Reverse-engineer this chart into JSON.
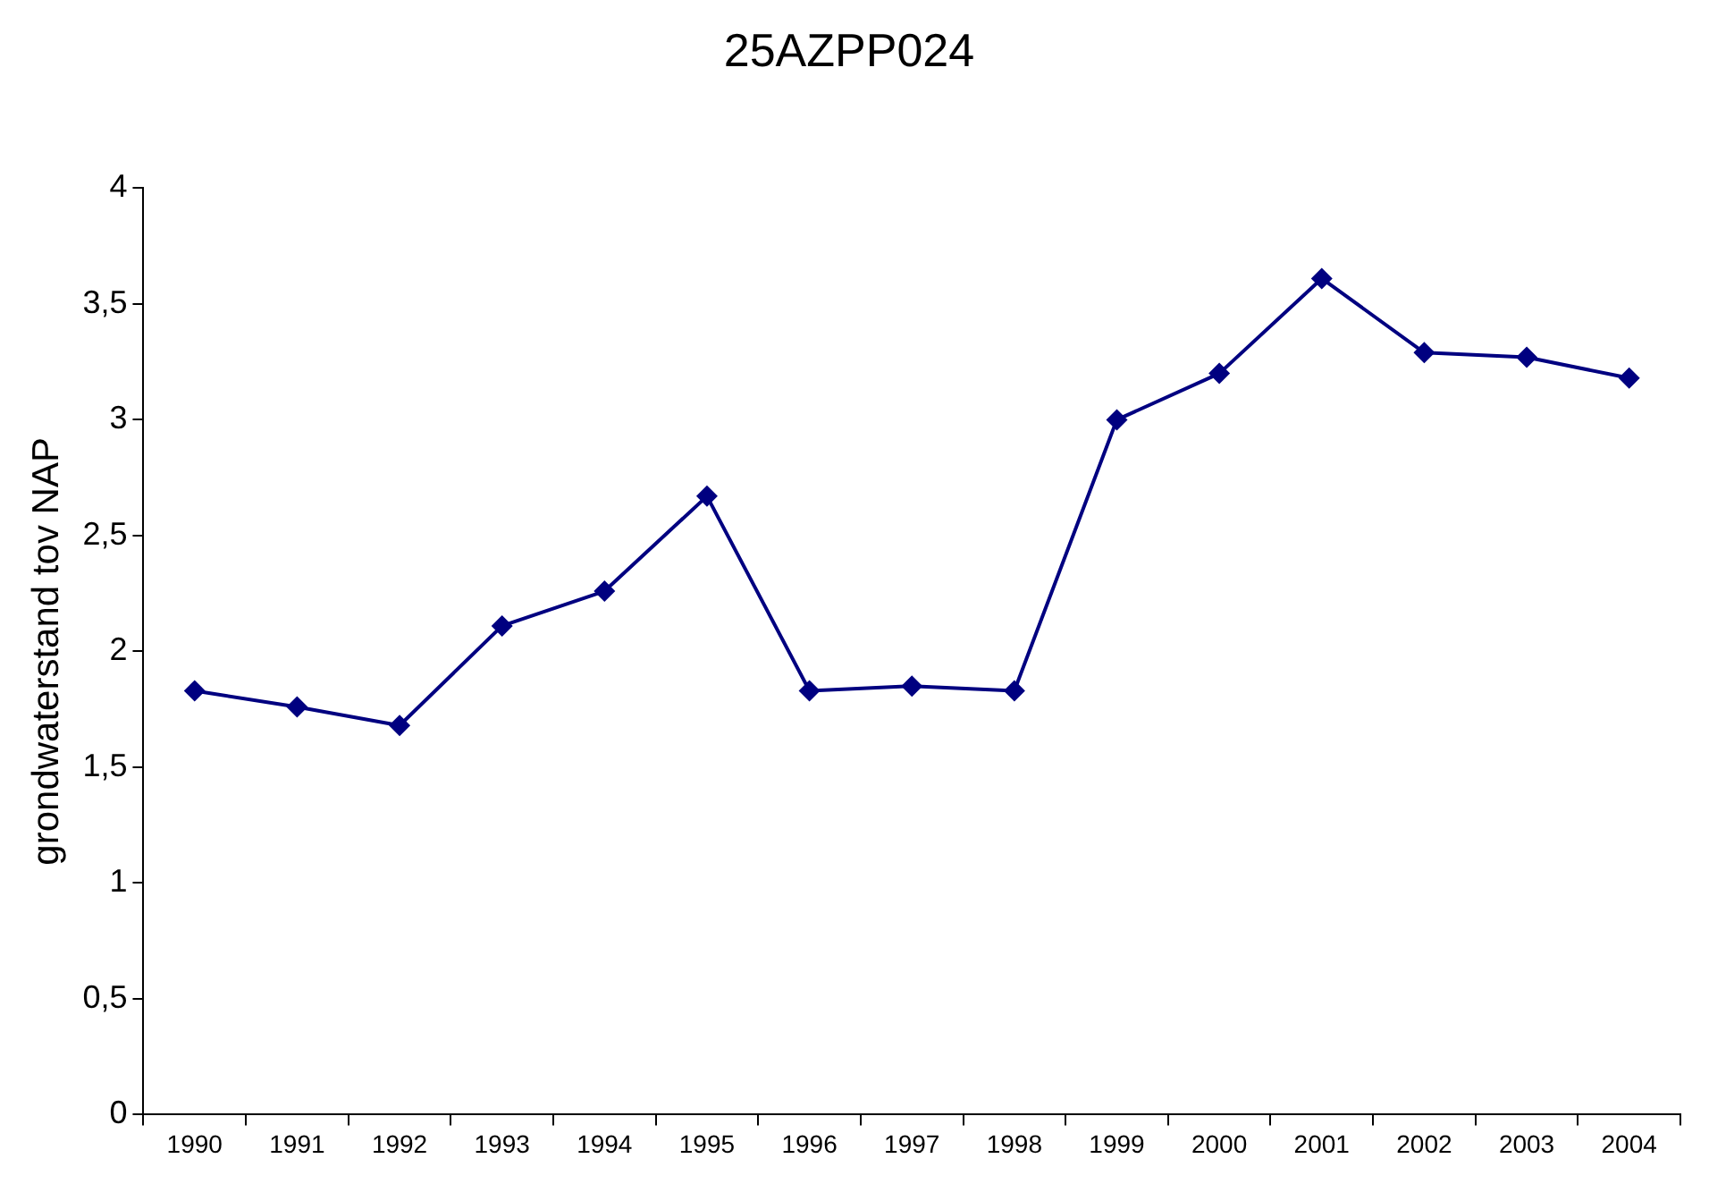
{
  "chart_data": {
    "type": "line",
    "title": "25AZPP024",
    "ylabel": "grondwaterstand tov NAP",
    "categories": [
      "1990",
      "1991",
      "1992",
      "1993",
      "1994",
      "1995",
      "1996",
      "1997",
      "1998",
      "1999",
      "2000",
      "2001",
      "2002",
      "2003",
      "2004"
    ],
    "series": [
      {
        "color": "#000080",
        "values": [
          1.83,
          1.76,
          1.68,
          2.11,
          2.26,
          2.67,
          1.83,
          1.85,
          1.83,
          3.0,
          3.2,
          3.61,
          3.29,
          3.27,
          3.18
        ]
      }
    ],
    "ylim": [
      0,
      4
    ],
    "yticks": [
      0,
      {
        "value": 0.5,
        "label": "0,5"
      },
      1,
      {
        "value": 1.5,
        "label": "1,5"
      },
      2,
      {
        "value": 2.5,
        "label": "2,5"
      },
      3,
      {
        "value": 3.5,
        "label": "3,5"
      },
      4
    ],
    "grid": false,
    "legend": false,
    "marker": "diamond",
    "line_style": "solid"
  }
}
